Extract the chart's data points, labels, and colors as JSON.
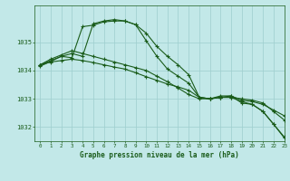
{
  "title": "Graphe pression niveau de la mer (hPa)",
  "background_color": "#c2e8e8",
  "grid_color": "#9ecece",
  "line_color": "#1a5c1a",
  "xlim": [
    -0.5,
    23
  ],
  "ylim": [
    1031.5,
    1036.3
  ],
  "yticks": [
    1032,
    1033,
    1034,
    1035
  ],
  "xticks": [
    0,
    1,
    2,
    3,
    4,
    5,
    6,
    7,
    8,
    9,
    10,
    11,
    12,
    13,
    14,
    15,
    16,
    17,
    18,
    19,
    20,
    21,
    22,
    23
  ],
  "series": [
    {
      "x": [
        0,
        1,
        2,
        3,
        4,
        5,
        6,
        7,
        8,
        9,
        10,
        11,
        12,
        13,
        14,
        15,
        16,
        17,
        18,
        19,
        20,
        21,
        22,
        23
      ],
      "y": [
        1034.2,
        1034.35,
        1034.5,
        1034.45,
        1035.55,
        1035.6,
        1035.72,
        1035.75,
        1035.75,
        1035.62,
        1035.32,
        1034.85,
        1034.5,
        1034.2,
        1033.85,
        1033.05,
        1033.0,
        1033.1,
        1033.1,
        1032.85,
        1032.8,
        1032.55,
        1032.1,
        1031.65
      ]
    },
    {
      "x": [
        0,
        1,
        2,
        3,
        4,
        5,
        6,
        7,
        8,
        9,
        10,
        11,
        12,
        13,
        14,
        15,
        16,
        17,
        18,
        19,
        20,
        21,
        22,
        23
      ],
      "y": [
        1034.2,
        1034.3,
        1034.35,
        1034.4,
        1034.35,
        1034.28,
        1034.2,
        1034.12,
        1034.05,
        1033.92,
        1033.78,
        1033.65,
        1033.52,
        1033.42,
        1033.3,
        1033.05,
        1033.0,
        1033.05,
        1033.05,
        1033.0,
        1032.95,
        1032.85,
        1032.55,
        1032.25
      ]
    },
    {
      "x": [
        0,
        1,
        2,
        3,
        4,
        5,
        6,
        7,
        8,
        9,
        10,
        11,
        12,
        13,
        14,
        15,
        16,
        17,
        18,
        19,
        20,
        21,
        22,
        23
      ],
      "y": [
        1034.2,
        1034.4,
        1034.55,
        1034.7,
        1034.6,
        1034.5,
        1034.4,
        1034.3,
        1034.2,
        1034.1,
        1034.0,
        1033.8,
        1033.6,
        1033.38,
        1033.15,
        1033.0,
        1033.0,
        1033.05,
        1033.1,
        1032.95,
        1032.9,
        1032.8,
        1032.6,
        1032.4
      ]
    },
    {
      "x": [
        0,
        1,
        2,
        3,
        4,
        5,
        6,
        7,
        8,
        9,
        10,
        11,
        12,
        13,
        14,
        15,
        16,
        17,
        18,
        19,
        20,
        21,
        22,
        23
      ],
      "y": [
        1034.15,
        1034.32,
        1034.5,
        1034.6,
        1034.5,
        1035.65,
        1035.75,
        1035.8,
        1035.75,
        1035.62,
        1035.05,
        1034.5,
        1034.05,
        1033.8,
        1033.55,
        1033.05,
        1033.0,
        1033.05,
        1033.05,
        1032.9,
        1032.8,
        1032.55,
        1032.1,
        1031.62
      ]
    }
  ]
}
